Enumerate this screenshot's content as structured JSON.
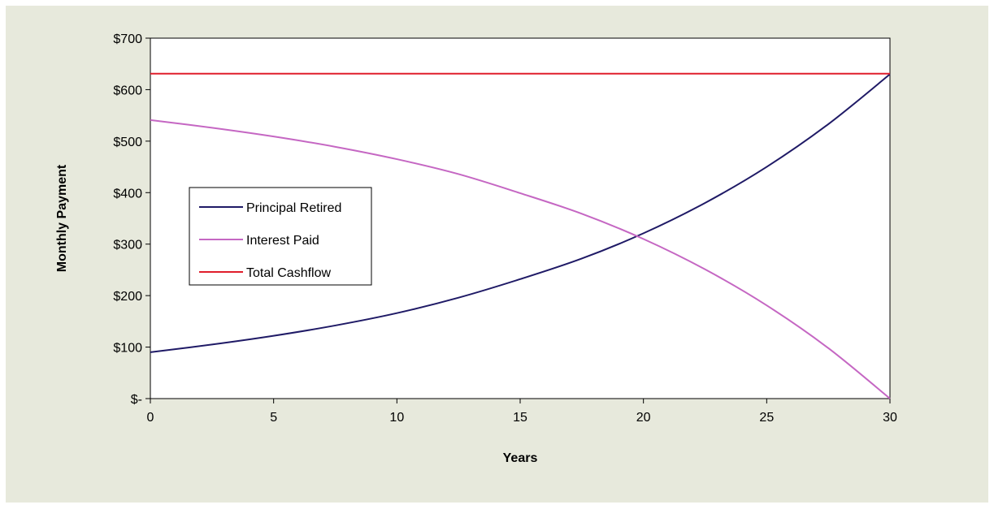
{
  "chart_data": {
    "type": "line",
    "xlabel": "Years",
    "ylabel": "Monthly Payment",
    "xlim": [
      0,
      30
    ],
    "ylim": [
      0,
      700
    ],
    "x_ticks": [
      0,
      5,
      10,
      15,
      20,
      25,
      30
    ],
    "y_ticks": [
      0,
      100,
      200,
      300,
      400,
      500,
      600,
      700
    ],
    "y_tick_labels": [
      "$-",
      "$100",
      "$200",
      "$300",
      "$400",
      "$500",
      "$600",
      "$700"
    ],
    "grid": false,
    "legend_position": "left-center",
    "x": [
      0,
      2.5,
      5,
      7.5,
      10,
      12.5,
      15,
      17.5,
      20,
      22.5,
      25,
      27.5,
      30
    ],
    "series": [
      {
        "name": "Principal Retired",
        "color": "#1f1a66",
        "values": [
          90,
          105,
          122,
          142,
          166,
          196,
          232,
          272,
          321,
          380,
          450,
          533,
          630
        ]
      },
      {
        "name": "Interest Paid",
        "color": "#c567c3",
        "values": [
          541,
          526,
          509,
          489,
          465,
          436,
          399,
          359,
          310,
          251,
          181,
          98,
          0
        ]
      },
      {
        "name": "Total Cashflow",
        "color": "#e01e2b",
        "values": [
          631,
          631,
          631,
          631,
          631,
          631,
          631,
          631,
          631,
          631,
          631,
          631,
          631
        ]
      }
    ]
  }
}
